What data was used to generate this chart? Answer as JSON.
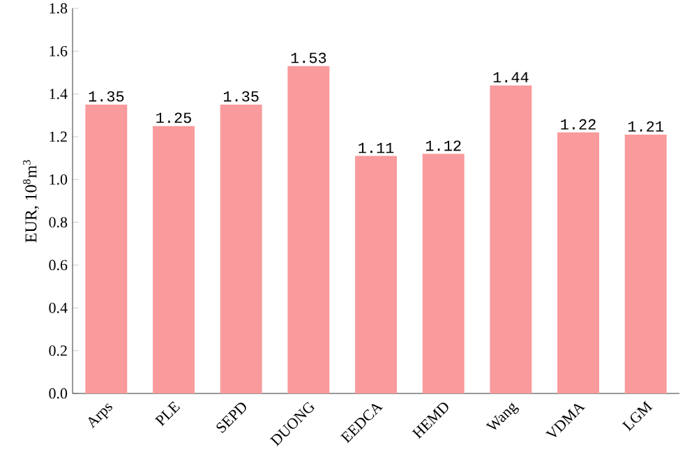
{
  "chart_data": {
    "type": "bar",
    "ylabel": "EUR, 10$^{8}$m$^{3}$",
    "categories": [
      "Arps",
      "PLE",
      "SEPD",
      "DUONG",
      "EEDCA",
      "HEMD",
      "Wang",
      "VDMA",
      "LGM"
    ],
    "values": [
      1.35,
      1.25,
      1.35,
      1.53,
      1.11,
      1.12,
      1.44,
      1.22,
      1.21
    ],
    "color": "#f99a9c",
    "ylim": [
      0,
      1.8
    ],
    "yticks": [
      {
        "value": 0,
        "label": "0.0"
      },
      0.2,
      0.4,
      0.6,
      0.8,
      {
        "value": 1,
        "label": "1.0"
      },
      1.2,
      1.4,
      1.6,
      1.8
    ],
    "data_labels": true
  }
}
